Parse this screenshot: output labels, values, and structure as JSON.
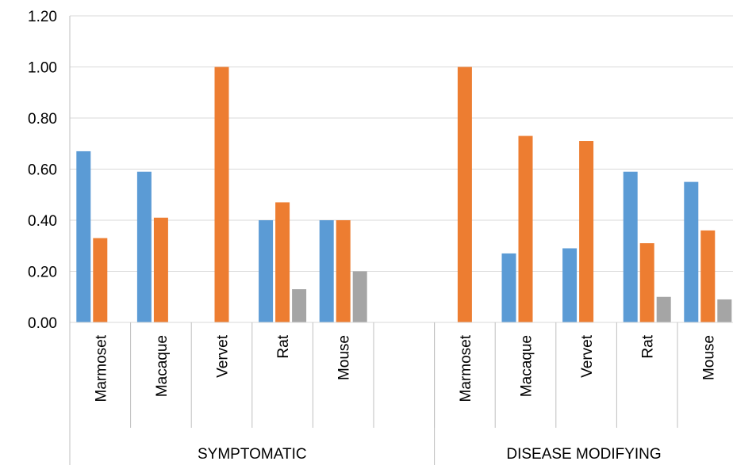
{
  "chart_data": {
    "type": "bar",
    "groups": [
      {
        "label": "SYMPTOMATIC",
        "categories": [
          "Marmoset",
          "Macaque",
          "Vervet",
          "Rat",
          "Mouse",
          ""
        ],
        "series": [
          {
            "color": "#5b9bd5",
            "values": [
              0.67,
              0.59,
              0.0,
              0.4,
              0.4,
              null
            ]
          },
          {
            "color": "#ed7d31",
            "values": [
              0.33,
              0.41,
              1.0,
              0.47,
              0.4,
              null
            ]
          },
          {
            "color": "#a5a5a5",
            "values": [
              0.0,
              0.0,
              0.0,
              0.13,
              0.2,
              null
            ]
          }
        ]
      },
      {
        "label": "DISEASE MODIFYING",
        "categories": [
          "Marmoset",
          "Macaque",
          "Vervet",
          "Rat",
          "Mouse"
        ],
        "series": [
          {
            "color": "#5b9bd5",
            "values": [
              0.0,
              0.27,
              0.29,
              0.59,
              0.55
            ]
          },
          {
            "color": "#ed7d31",
            "values": [
              1.0,
              0.73,
              0.71,
              0.31,
              0.36
            ]
          },
          {
            "color": "#a5a5a5",
            "values": [
              0.0,
              0.0,
              0.0,
              0.1,
              0.09
            ]
          }
        ]
      }
    ],
    "ylim": [
      0,
      1.2
    ],
    "yticks": [
      "0.00",
      "0.20",
      "0.40",
      "0.60",
      "0.80",
      "1.00",
      "1.20"
    ],
    "grid": true,
    "legend": "none"
  }
}
